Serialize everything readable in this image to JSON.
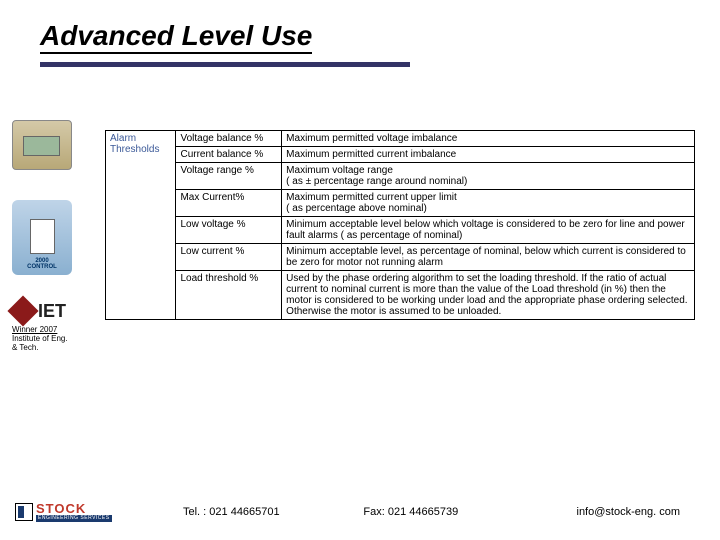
{
  "title": "Advanced Level Use",
  "sidebar": {
    "award_year": "2000",
    "award_text": "CONTROL",
    "iet": "IET",
    "iet_caption_line1": "Winner 2007",
    "iet_caption_line2": "Institute of Eng.",
    "iet_caption_line3": "& Tech."
  },
  "table": {
    "category": "Alarm Thresholds",
    "rows": [
      {
        "param": "Voltage balance %",
        "desc": "Maximum permitted voltage imbalance"
      },
      {
        "param": "Current balance %",
        "desc": "Maximum permitted current imbalance"
      },
      {
        "param": "Voltage range %",
        "desc": "Maximum voltage range\n( as ± percentage range around nominal)"
      },
      {
        "param": "Max Current%",
        "desc": "Maximum permitted current upper limit\n( as percentage above nominal)"
      },
      {
        "param": "Low voltage %",
        "desc": "Minimum acceptable level below which voltage is considered to be zero for line and power fault alarms ( as percentage of nominal)"
      },
      {
        "param": "Low current %",
        "desc": "Minimum acceptable level, as percentage of nominal, below which current is considered to be zero for motor not running alarm"
      },
      {
        "param": "Load threshold %",
        "desc": "Used by the phase ordering algorithm to set the loading threshold. If the ratio of actual current to nominal current is more than the value of the Load threshold (in %) then the motor is considered to be working under load and the appropriate phase ordering selected. Otherwise the motor is assumed to be unloaded."
      }
    ]
  },
  "footer": {
    "company": "STOCK",
    "subtitle": "ENGINEERING SERVICES",
    "tel": "Tel. : 021 44665701",
    "fax": "Fax: 021 44665739",
    "email": "info@stock-eng. com"
  }
}
